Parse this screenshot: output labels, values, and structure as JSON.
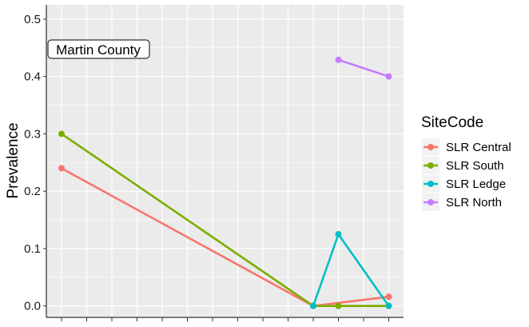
{
  "chart_data": {
    "type": "line",
    "title": "",
    "xlabel": "",
    "ylabel": "Prevalence",
    "ylim": [
      -0.02,
      0.525
    ],
    "yticks": [
      0.0,
      0.1,
      0.2,
      0.3,
      0.4,
      0.5
    ],
    "ytick_labels": [
      "0.0",
      "0.1",
      "0.2",
      "0.3",
      "0.4",
      "0.5"
    ],
    "x_categories": 14,
    "x_tick_labels_shown": false,
    "grid": true,
    "annotation": "Martin County",
    "legend": {
      "title": "SiteCode",
      "placement": "right"
    },
    "series": [
      {
        "name": "SLR Central",
        "color": "#F8766D",
        "x": [
          1,
          11,
          14
        ],
        "y": [
          0.24,
          0.0,
          0.016
        ]
      },
      {
        "name": "SLR South",
        "color": "#7CAE00",
        "x": [
          1,
          11,
          12,
          14
        ],
        "y": [
          0.3,
          0.0,
          0.0,
          0.0
        ]
      },
      {
        "name": "SLR Ledge",
        "color": "#00BFC4",
        "x": [
          11,
          12,
          14
        ],
        "y": [
          0.0,
          0.125,
          0.0
        ]
      },
      {
        "name": "SLR North",
        "color": "#C77CFF",
        "x": [
          12,
          14
        ],
        "y": [
          0.429,
          0.4
        ]
      }
    ]
  }
}
